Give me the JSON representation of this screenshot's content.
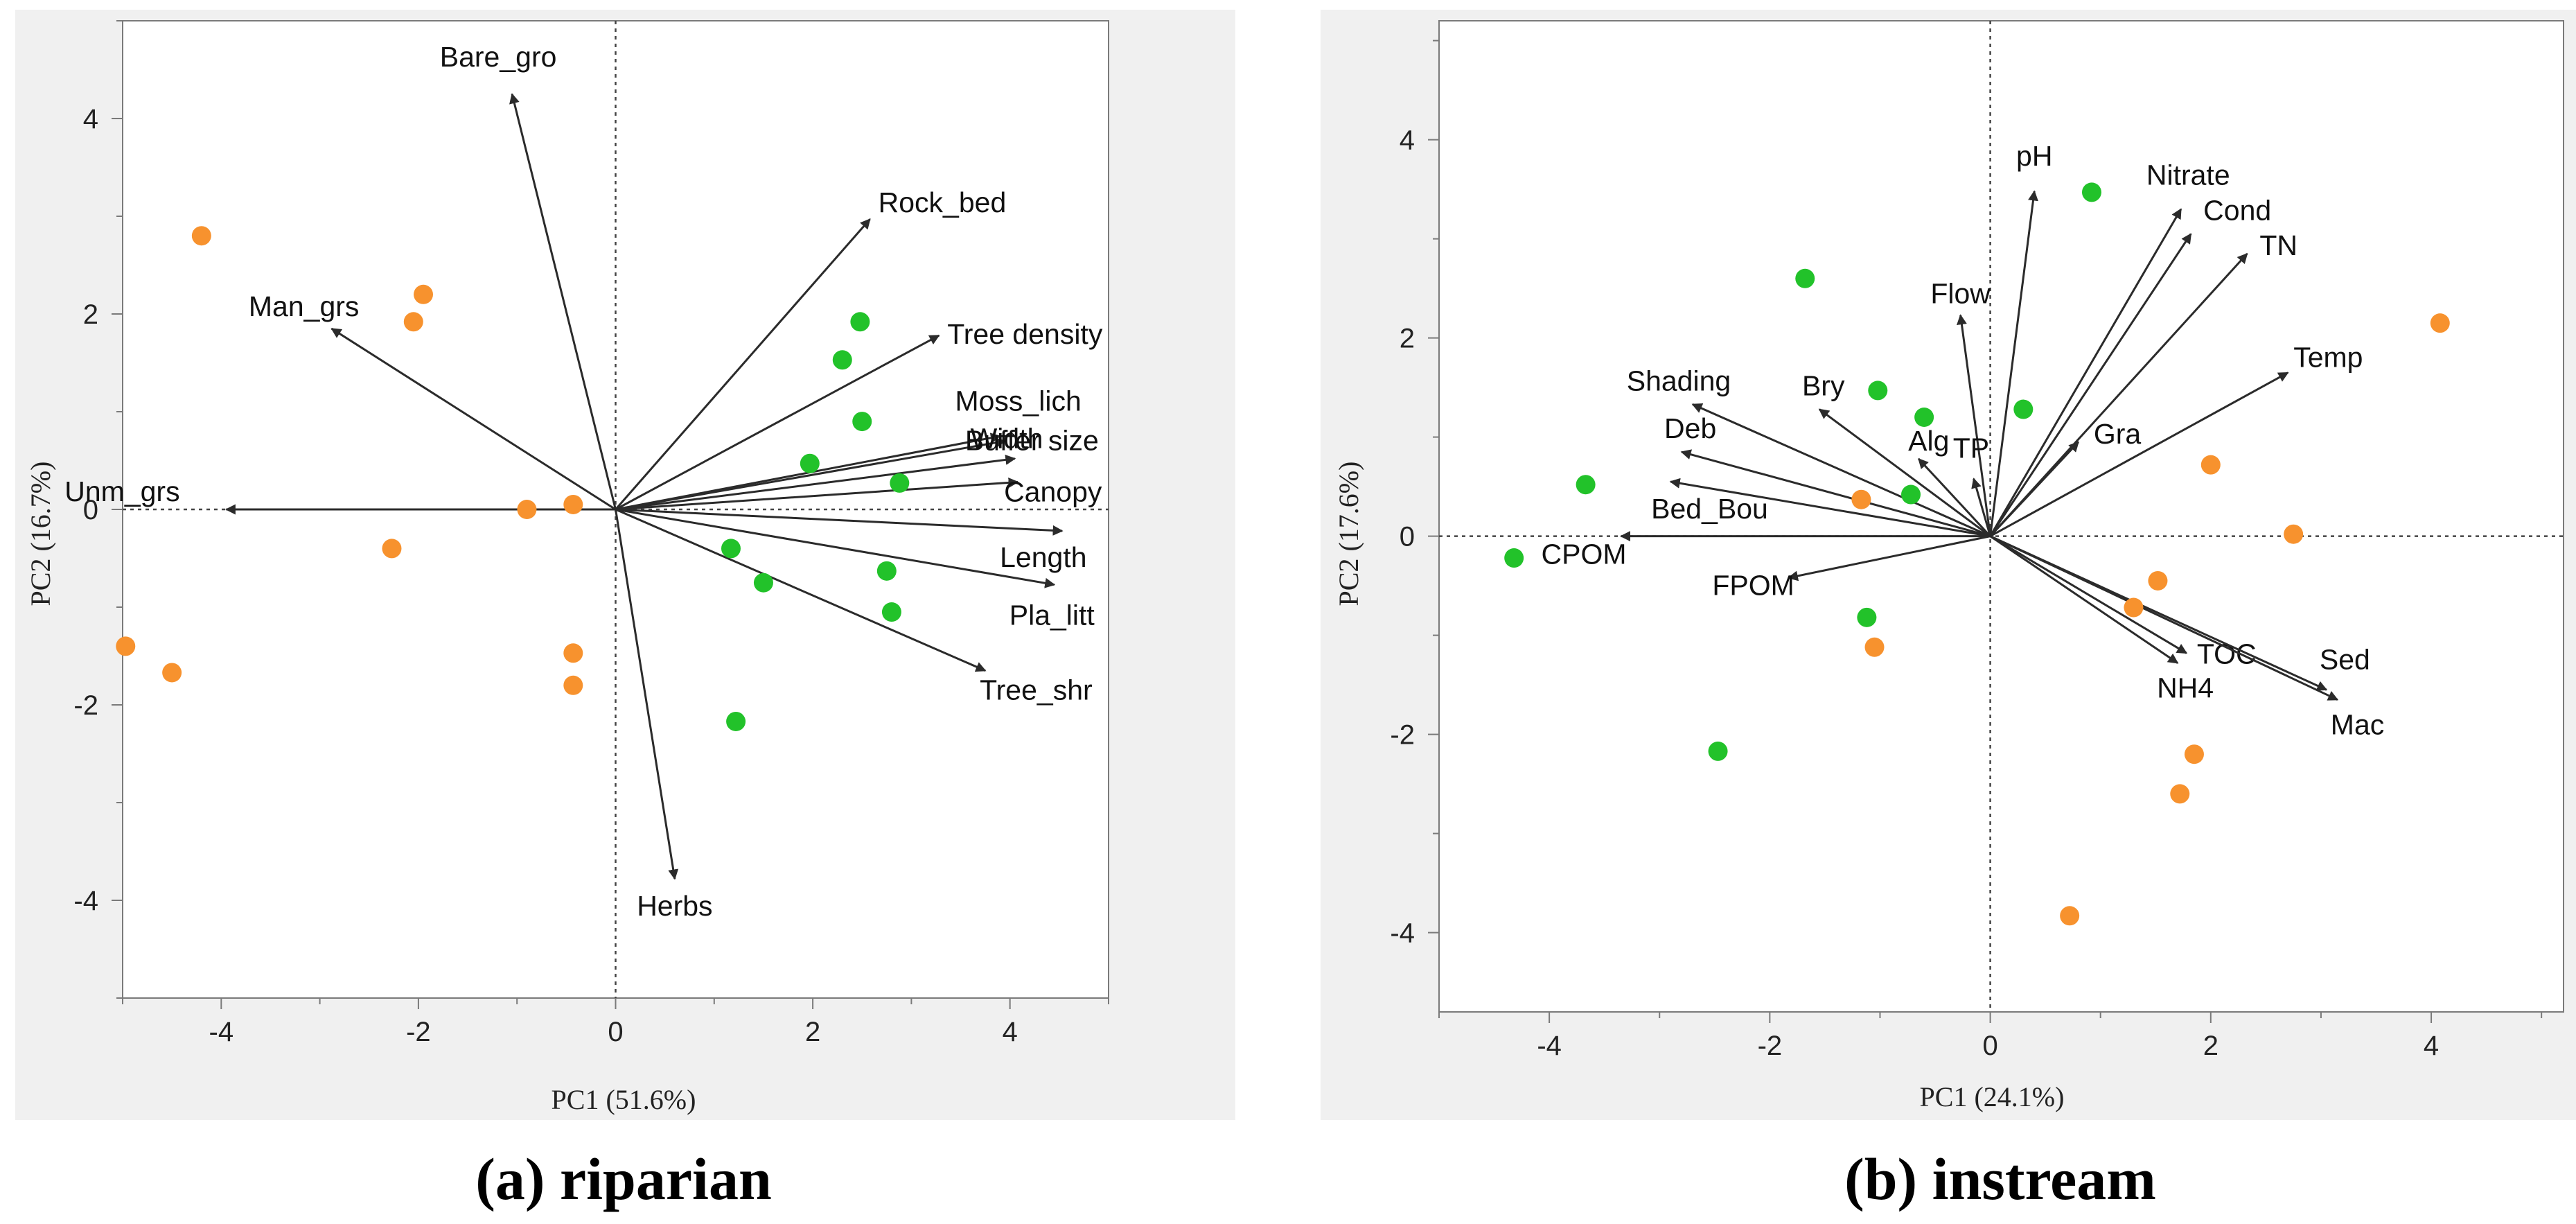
{
  "colors": {
    "orange": "#f7922e",
    "green": "#22c22a",
    "arrow": "#2b2b2b"
  },
  "chart_data": [
    {
      "type": "scatter",
      "subtype": "pca-biplot",
      "caption": "(a) riparian",
      "xlabel": "PC1 (51.6%)",
      "ylabel": "PC2 (16.7%)",
      "xlim": [
        -5,
        5
      ],
      "ylim": [
        -5,
        5
      ],
      "xticks": [
        -4,
        -2,
        0,
        2,
        4
      ],
      "yticks": [
        -4,
        -2,
        0,
        2,
        4
      ],
      "series": [
        {
          "name": "orange",
          "color": "#f7922e",
          "points": [
            [
              -4.2,
              2.8
            ],
            [
              -1.95,
              2.2
            ],
            [
              -2.05,
              1.92
            ],
            [
              -4.97,
              -1.4
            ],
            [
              -4.5,
              -1.67
            ],
            [
              -2.27,
              -0.4
            ],
            [
              -0.9,
              0.0
            ],
            [
              -0.43,
              0.05
            ],
            [
              -0.43,
              -1.47
            ],
            [
              -0.43,
              -1.8
            ]
          ]
        },
        {
          "name": "green",
          "color": "#22c22a",
          "points": [
            [
              2.48,
              1.92
            ],
            [
              2.3,
              1.53
            ],
            [
              2.5,
              0.9
            ],
            [
              1.97,
              0.47
            ],
            [
              2.88,
              0.27
            ],
            [
              1.17,
              -0.4
            ],
            [
              1.5,
              -0.75
            ],
            [
              2.75,
              -0.63
            ],
            [
              2.8,
              -1.05
            ],
            [
              1.22,
              -2.17
            ]
          ]
        }
      ],
      "loadings": [
        {
          "label": "Bare_gro",
          "x": -1.05,
          "y": 4.25
        },
        {
          "label": "Man_grs",
          "x": -2.88,
          "y": 1.85
        },
        {
          "label": "Unm_grs",
          "x": -3.95,
          "y": 0.0
        },
        {
          "label": "Rock_bed",
          "x": 2.58,
          "y": 2.97
        },
        {
          "label": "Tree density",
          "x": 3.28,
          "y": 1.78
        },
        {
          "label": "Moss_lich",
          "x": 3.9,
          "y": 0.75
        },
        {
          "label": "Width",
          "x": 3.95,
          "y": 0.7
        },
        {
          "label": "Buffer size",
          "x": 4.05,
          "y": 0.52
        },
        {
          "label": "Canopy",
          "x": 4.08,
          "y": 0.28
        },
        {
          "label": "Length",
          "x": 4.53,
          "y": -0.22
        },
        {
          "label": "Pla_litt",
          "x": 4.45,
          "y": -0.77
        },
        {
          "label": "Tree_shr",
          "x": 3.75,
          "y": -1.65
        },
        {
          "label": "Herbs",
          "x": 0.6,
          "y": -3.78
        }
      ]
    },
    {
      "type": "scatter",
      "subtype": "pca-biplot",
      "caption": "(b) instream",
      "xlabel": "PC1 (24.1%)",
      "ylabel": "PC2 (17.6%)",
      "xlim": [
        -5,
        5.2
      ],
      "ylim": [
        -4.8,
        5.2
      ],
      "xticks": [
        -4,
        -2,
        0,
        2,
        4
      ],
      "yticks": [
        -4,
        -2,
        0,
        2,
        4
      ],
      "series": [
        {
          "name": "orange",
          "color": "#f7922e",
          "points": [
            [
              4.08,
              2.15
            ],
            [
              2.0,
              0.72
            ],
            [
              2.75,
              0.02
            ],
            [
              -1.17,
              0.37
            ],
            [
              1.52,
              -0.45
            ],
            [
              1.3,
              -0.72
            ],
            [
              -1.05,
              -1.12
            ],
            [
              1.85,
              -2.2
            ],
            [
              1.72,
              -2.6
            ],
            [
              0.72,
              -3.83
            ]
          ]
        },
        {
          "name": "green",
          "color": "#22c22a",
          "points": [
            [
              0.92,
              3.47
            ],
            [
              -1.68,
              2.6
            ],
            [
              -1.02,
              1.47
            ],
            [
              -0.6,
              1.2
            ],
            [
              0.3,
              1.28
            ],
            [
              -0.72,
              0.42
            ],
            [
              -3.67,
              0.52
            ],
            [
              -4.32,
              -0.22
            ],
            [
              -1.12,
              -0.82
            ],
            [
              -2.47,
              -2.17
            ]
          ]
        }
      ],
      "loadings": [
        {
          "label": "pH",
          "x": 0.4,
          "y": 3.48
        },
        {
          "label": "Nitrate",
          "x": 1.73,
          "y": 3.3
        },
        {
          "label": "Cond",
          "x": 1.82,
          "y": 3.05
        },
        {
          "label": "TN",
          "x": 2.33,
          "y": 2.85
        },
        {
          "label": "Temp",
          "x": 2.7,
          "y": 1.65
        },
        {
          "label": "Flow",
          "x": -0.27,
          "y": 2.23
        },
        {
          "label": "Gra",
          "x": 0.8,
          "y": 0.95
        },
        {
          "label": "Shading",
          "x": -2.7,
          "y": 1.33
        },
        {
          "label": "Bry",
          "x": -1.55,
          "y": 1.28
        },
        {
          "label": "Alg",
          "x": -0.65,
          "y": 0.78
        },
        {
          "label": "TP",
          "x": -0.15,
          "y": 0.58
        },
        {
          "label": "Deb",
          "x": -2.8,
          "y": 0.85
        },
        {
          "label": "Bed_Bou",
          "x": -2.9,
          "y": 0.55
        },
        {
          "label": "CPOM",
          "x": -3.35,
          "y": 0.0
        },
        {
          "label": "FPOM",
          "x": -1.83,
          "y": -0.42
        },
        {
          "label": "TOC",
          "x": 1.78,
          "y": -1.18
        },
        {
          "label": "NH4",
          "x": 1.7,
          "y": -1.28
        },
        {
          "label": "Sed",
          "x": 3.05,
          "y": -1.55
        },
        {
          "label": "Mac",
          "x": 3.15,
          "y": -1.65
        }
      ]
    }
  ]
}
